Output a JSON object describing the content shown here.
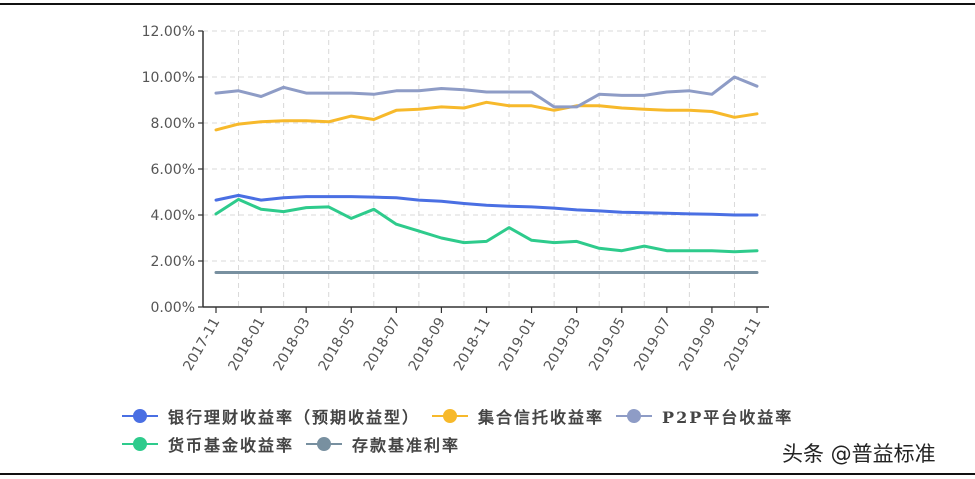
{
  "chart_data": {
    "type": "line",
    "title": "",
    "xlabel": "",
    "ylabel": "",
    "ylim": [
      0,
      12
    ],
    "grid": true,
    "legend_position": "bottom",
    "y_ticks": [
      "0.00%",
      "2.00%",
      "4.00%",
      "6.00%",
      "8.00%",
      "10.00%",
      "12.00%"
    ],
    "x": [
      "2017-11",
      "2017-12",
      "2018-01",
      "2018-02",
      "2018-03",
      "2018-04",
      "2018-05",
      "2018-06",
      "2018-07",
      "2018-08",
      "2018-09",
      "2018-10",
      "2018-11",
      "2018-12",
      "2019-01",
      "2019-02",
      "2019-03",
      "2019-04",
      "2019-05",
      "2019-06",
      "2019-07",
      "2019-08",
      "2019-09",
      "2019-10",
      "2019-11"
    ],
    "x_tick_labels": [
      "2017-11",
      "2018-01",
      "2018-03",
      "2018-05",
      "2018-07",
      "2018-09",
      "2018-11",
      "2019-01",
      "2019-03",
      "2019-05",
      "2019-07",
      "2019-09",
      "2019-11"
    ],
    "series": [
      {
        "name": "银行理财收益率（预期收益型）",
        "color": "#4a6fe3",
        "values": [
          4.65,
          4.85,
          4.65,
          4.75,
          4.8,
          4.8,
          4.8,
          4.78,
          4.75,
          4.65,
          4.6,
          4.5,
          4.42,
          4.38,
          4.35,
          4.3,
          4.22,
          4.18,
          4.12,
          4.1,
          4.08,
          4.05,
          4.03,
          4.0,
          4.0
        ]
      },
      {
        "name": "集合信托收益率",
        "color": "#f7b92b",
        "values": [
          7.7,
          7.95,
          8.05,
          8.1,
          8.1,
          8.05,
          8.3,
          8.15,
          8.55,
          8.6,
          8.7,
          8.65,
          8.9,
          8.75,
          8.75,
          8.55,
          8.75,
          8.75,
          8.65,
          8.6,
          8.55,
          8.55,
          8.5,
          8.25,
          8.4
        ]
      },
      {
        "name": "P2P平台收益率",
        "color": "#8e9cc6",
        "values": [
          9.3,
          9.4,
          9.15,
          9.55,
          9.3,
          9.3,
          9.3,
          9.25,
          9.4,
          9.4,
          9.5,
          9.45,
          9.35,
          9.35,
          9.35,
          8.7,
          8.7,
          9.25,
          9.2,
          9.2,
          9.35,
          9.4,
          9.25,
          10.0,
          9.6
        ]
      },
      {
        "name": "货币基金收益率",
        "color": "#2ecb8c",
        "values": [
          4.05,
          4.68,
          4.25,
          4.15,
          4.32,
          4.35,
          3.85,
          4.25,
          3.6,
          3.3,
          3.0,
          2.8,
          2.85,
          3.45,
          2.9,
          2.8,
          2.85,
          2.55,
          2.45,
          2.65,
          2.45,
          2.45,
          2.45,
          2.4,
          2.45
        ]
      },
      {
        "name": "存款基准利率",
        "color": "#7890a0",
        "values": [
          1.5,
          1.5,
          1.5,
          1.5,
          1.5,
          1.5,
          1.5,
          1.5,
          1.5,
          1.5,
          1.5,
          1.5,
          1.5,
          1.5,
          1.5,
          1.5,
          1.5,
          1.5,
          1.5,
          1.5,
          1.5,
          1.5,
          1.5,
          1.5,
          1.5
        ]
      }
    ]
  },
  "legend": {
    "items": [
      {
        "label": "银行理财收益率（预期收益型）",
        "color": "#4a6fe3"
      },
      {
        "label": "集合信托收益率",
        "color": "#f7b92b"
      },
      {
        "label": "P2P平台收益率",
        "color": "#8e9cc6"
      },
      {
        "label": "货币基金收益率",
        "color": "#2ecb8c"
      },
      {
        "label": "存款基准利率",
        "color": "#7890a0"
      }
    ]
  },
  "watermark": "头条 @普益标准"
}
